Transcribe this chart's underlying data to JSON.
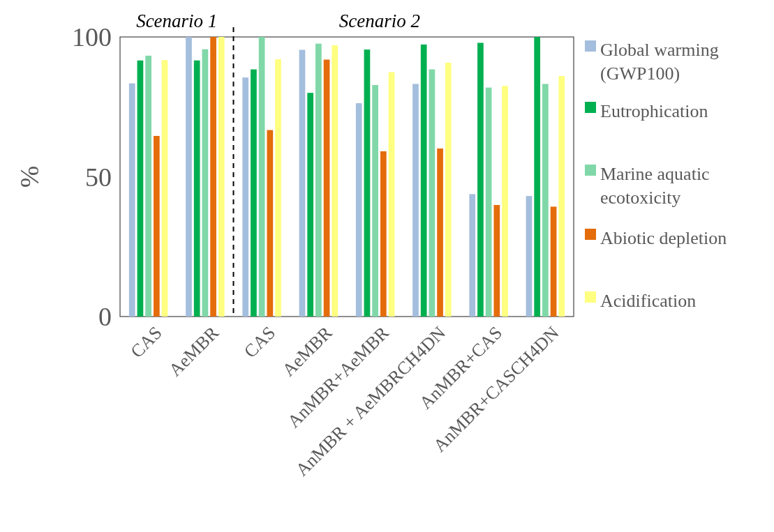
{
  "chart_data": {
    "type": "bar",
    "ylabel": "%",
    "categories": [
      "CAS",
      "AeMBR",
      "CAS",
      "AeMBR",
      "AnMBR+AeMBR",
      "AnMBR + AeMBRCH4DN",
      "AnMBR+CAS",
      "AnMBR+CASCH4DN"
    ],
    "series": [
      {
        "name": "Global warming (GWP100)",
        "color": "#a4bedd",
        "values": [
          83.4,
          100,
          85.5,
          95.4,
          76.3,
          83.2,
          43.8,
          43.1
        ]
      },
      {
        "name": "Eutrophication",
        "color": "#00b050",
        "values": [
          91.6,
          91.6,
          88.4,
          80,
          95.5,
          97.3,
          97.9,
          100
        ]
      },
      {
        "name": "Marine aquatic ecotoxicity",
        "color": "#80d8a8",
        "values": [
          93.3,
          95.6,
          100,
          97.6,
          82.8,
          88.4,
          81.9,
          83.2
        ]
      },
      {
        "name": "Abiotic depletion",
        "color": "#e46c0a",
        "values": [
          64.6,
          100,
          66.7,
          91.9,
          59.1,
          60.1,
          39.9,
          39.3
        ]
      },
      {
        "name": "Acidification",
        "color": "#ffff80",
        "values": [
          91.7,
          100,
          92,
          97,
          87.4,
          90.8,
          82.5,
          86
        ]
      }
    ],
    "ylim": [
      0,
      100
    ],
    "yticks": [
      0,
      50,
      100
    ],
    "grid": false,
    "legend": "right",
    "annotations": [
      "Scenario 1",
      "Scenario 2"
    ]
  }
}
